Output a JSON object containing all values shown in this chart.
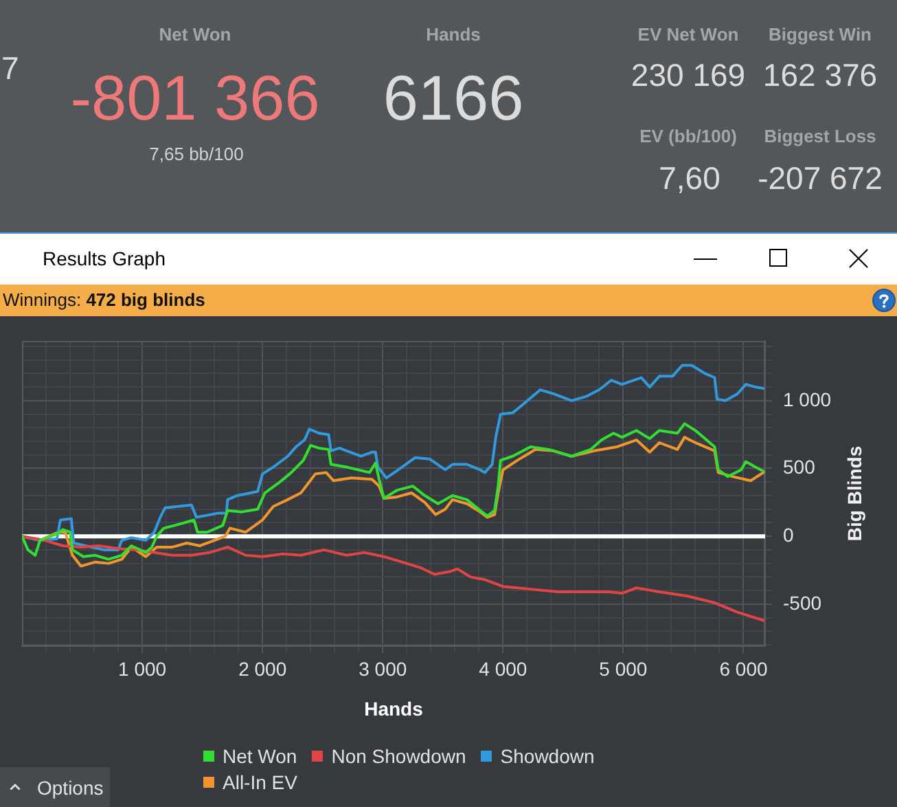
{
  "chart_data": [
    {
      "type": "other",
      "annotations": [
        "7",
        "Net Won",
        "-801 366",
        "7,65 bb/100",
        "Hands",
        "6166",
        "EV Net Won",
        "230 169",
        "Biggest Win",
        "162 376",
        "EV (bb/100)",
        "7,60",
        "Biggest Loss",
        "-207 672"
      ]
    },
    {
      "type": "line",
      "title": "Results Graph",
      "subtitle": "Winnings: 472 big blinds",
      "xlabel": "Hands",
      "ylabel": "Big Blinds",
      "xlim": [
        0,
        6180
      ],
      "xticks": [
        {
          "value": 200,
          "label": null
        },
        {
          "value": 400,
          "label": null
        },
        {
          "value": 600,
          "label": null
        },
        {
          "value": 800,
          "label": null
        },
        {
          "value": 1000,
          "label": "1 000"
        },
        {
          "value": 1200,
          "label": null
        },
        {
          "value": 1400,
          "label": null
        },
        {
          "value": 1600,
          "label": null
        },
        {
          "value": 1800,
          "label": null
        },
        {
          "value": 2000,
          "label": "2 000"
        },
        {
          "value": 2200,
          "label": null
        },
        {
          "value": 2400,
          "label": null
        },
        {
          "value": 2600,
          "label": null
        },
        {
          "value": 2800,
          "label": null
        },
        {
          "value": 3000,
          "label": "3 000"
        },
        {
          "value": 3200,
          "label": null
        },
        {
          "value": 3400,
          "label": null
        },
        {
          "value": 3600,
          "label": null
        },
        {
          "value": 3800,
          "label": null
        },
        {
          "value": 4000,
          "label": "4 000"
        },
        {
          "value": 4200,
          "label": null
        },
        {
          "value": 4400,
          "label": null
        },
        {
          "value": 4600,
          "label": null
        },
        {
          "value": 4800,
          "label": null
        },
        {
          "value": 5000,
          "label": "5 000"
        },
        {
          "value": 5200,
          "label": null
        },
        {
          "value": 5400,
          "label": null
        },
        {
          "value": 5600,
          "label": null
        },
        {
          "value": 5800,
          "label": null
        },
        {
          "value": 6000,
          "label": "6 000"
        }
      ],
      "ylim": [
        -810,
        1440
      ],
      "yticks": [
        {
          "value": -800,
          "label": null
        },
        {
          "value": -700,
          "label": null
        },
        {
          "value": -600,
          "label": null
        },
        -500,
        {
          "value": -400,
          "label": null
        },
        {
          "value": -300,
          "label": null
        },
        {
          "value": -200,
          "label": null
        },
        {
          "value": -100,
          "label": null
        },
        0,
        {
          "value": 100,
          "label": null
        },
        {
          "value": 200,
          "label": null
        },
        {
          "value": 300,
          "label": null
        },
        {
          "value": 400,
          "label": null
        },
        500,
        {
          "value": 600,
          "label": null
        },
        {
          "value": 700,
          "label": null
        },
        {
          "value": 800,
          "label": null
        },
        {
          "value": 900,
          "label": null
        },
        {
          "value": 1000,
          "label": "1 000"
        },
        {
          "value": 1100,
          "label": null
        },
        {
          "value": 1200,
          "label": null
        },
        {
          "value": 1300,
          "label": null
        },
        {
          "value": 1400,
          "label": null
        }
      ],
      "grid": true,
      "legend": "bottom",
      "ref_lines": [
        {
          "axis": "y",
          "value": 0,
          "color": "#ffffff"
        }
      ],
      "annotations": [
        "Options"
      ],
      "series": [
        {
          "name": "Net Won",
          "color": "#33dd33",
          "x": [
            0,
            50,
            110,
            150,
            300,
            340,
            400,
            420,
            510,
            610,
            720,
            830,
            910,
            1030,
            1080,
            1120,
            1180,
            1270,
            1430,
            1460,
            1540,
            1670,
            1710,
            1830,
            1960,
            2020,
            2130,
            2240,
            2340,
            2400,
            2470,
            2550,
            2570,
            2700,
            2890,
            2940,
            2970,
            3010,
            3120,
            3250,
            3350,
            3460,
            3580,
            3700,
            3810,
            3870,
            3930,
            3960,
            3980,
            4080,
            4230,
            4380,
            4570,
            4730,
            4820,
            4920,
            4990,
            5110,
            5220,
            5300,
            5450,
            5510,
            5600,
            5760,
            5790,
            5870,
            5980,
            6020,
            6100,
            6166
          ],
          "values": [
            0,
            -100,
            -140,
            -30,
            20,
            50,
            30,
            -100,
            -150,
            -140,
            -170,
            -140,
            -70,
            -120,
            -80,
            0,
            60,
            80,
            120,
            30,
            30,
            80,
            190,
            180,
            200,
            320,
            390,
            470,
            560,
            670,
            650,
            640,
            530,
            510,
            470,
            540,
            420,
            280,
            340,
            370,
            300,
            240,
            300,
            270,
            190,
            150,
            190,
            370,
            560,
            590,
            660,
            640,
            590,
            640,
            710,
            760,
            730,
            780,
            720,
            780,
            760,
            830,
            780,
            660,
            490,
            440,
            490,
            550,
            510,
            480
          ]
        },
        {
          "name": "Non Showdown",
          "color": "#e04545",
          "x": [
            0,
            190,
            340,
            490,
            640,
            800,
            950,
            1100,
            1250,
            1410,
            1560,
            1710,
            1860,
            2000,
            2170,
            2320,
            2510,
            2700,
            2850,
            3010,
            3160,
            3310,
            3430,
            3560,
            3620,
            3730,
            3850,
            4000,
            4230,
            4460,
            4690,
            4880,
            4990,
            5110,
            5300,
            5530,
            5760,
            5950,
            6166
          ],
          "values": [
            0,
            -30,
            -70,
            -80,
            -70,
            -90,
            -100,
            -120,
            -140,
            -140,
            -120,
            -80,
            -140,
            -150,
            -130,
            -140,
            -100,
            -140,
            -120,
            -150,
            -190,
            -230,
            -280,
            -260,
            -240,
            -300,
            -320,
            -370,
            -390,
            -410,
            -410,
            -410,
            -420,
            -380,
            -410,
            -440,
            -490,
            -560,
            -620
          ]
        },
        {
          "name": "Showdown",
          "color": "#3399dd",
          "x": [
            0,
            150,
            290,
            320,
            410,
            430,
            530,
            680,
            800,
            830,
            910,
            1030,
            1100,
            1150,
            1190,
            1410,
            1450,
            1630,
            1700,
            1710,
            1790,
            1960,
            2000,
            2090,
            2210,
            2280,
            2350,
            2390,
            2470,
            2550,
            2570,
            2640,
            2820,
            2910,
            2940,
            2960,
            3030,
            3160,
            3270,
            3390,
            3520,
            3580,
            3700,
            3810,
            3850,
            3910,
            3940,
            3980,
            4080,
            4150,
            4310,
            4420,
            4570,
            4690,
            4800,
            4900,
            4990,
            5150,
            5220,
            5300,
            5410,
            5490,
            5570,
            5680,
            5760,
            5780,
            5850,
            5950,
            6020,
            6100,
            6166
          ],
          "values": [
            0,
            -30,
            -20,
            120,
            130,
            -50,
            -70,
            -100,
            -100,
            -30,
            -10,
            -30,
            30,
            140,
            210,
            230,
            140,
            170,
            170,
            270,
            300,
            330,
            460,
            510,
            590,
            660,
            710,
            790,
            760,
            750,
            630,
            650,
            590,
            620,
            620,
            510,
            430,
            510,
            580,
            570,
            490,
            530,
            530,
            490,
            470,
            530,
            730,
            900,
            910,
            960,
            1080,
            1050,
            1000,
            1030,
            1080,
            1150,
            1120,
            1170,
            1100,
            1180,
            1180,
            1260,
            1260,
            1200,
            1170,
            1010,
            1000,
            1050,
            1120,
            1100,
            1090
          ]
        },
        {
          "name": "All-In EV",
          "color": "#f0962e",
          "x": [
            0,
            150,
            300,
            360,
            420,
            490,
            610,
            720,
            830,
            910,
            1030,
            1120,
            1250,
            1370,
            1480,
            1600,
            1690,
            1730,
            1860,
            2000,
            2090,
            2210,
            2320,
            2440,
            2530,
            2590,
            2740,
            2910,
            2970,
            3010,
            3120,
            3240,
            3350,
            3440,
            3520,
            3580,
            3700,
            3810,
            3870,
            3930,
            3960,
            4000,
            4120,
            4270,
            4420,
            4570,
            4760,
            4950,
            5110,
            5220,
            5300,
            5450,
            5510,
            5600,
            5760,
            5790,
            5910,
            6060,
            6166
          ],
          "values": [
            0,
            -30,
            30,
            30,
            -140,
            -220,
            -190,
            -200,
            -170,
            -80,
            -150,
            -80,
            -80,
            -50,
            -70,
            -30,
            0,
            60,
            30,
            120,
            220,
            270,
            320,
            460,
            470,
            410,
            430,
            420,
            370,
            280,
            290,
            320,
            250,
            160,
            200,
            270,
            240,
            180,
            140,
            160,
            320,
            490,
            560,
            640,
            630,
            590,
            630,
            660,
            710,
            620,
            690,
            640,
            730,
            690,
            630,
            470,
            440,
            410,
            470
          ]
        }
      ]
    }
  ]
}
